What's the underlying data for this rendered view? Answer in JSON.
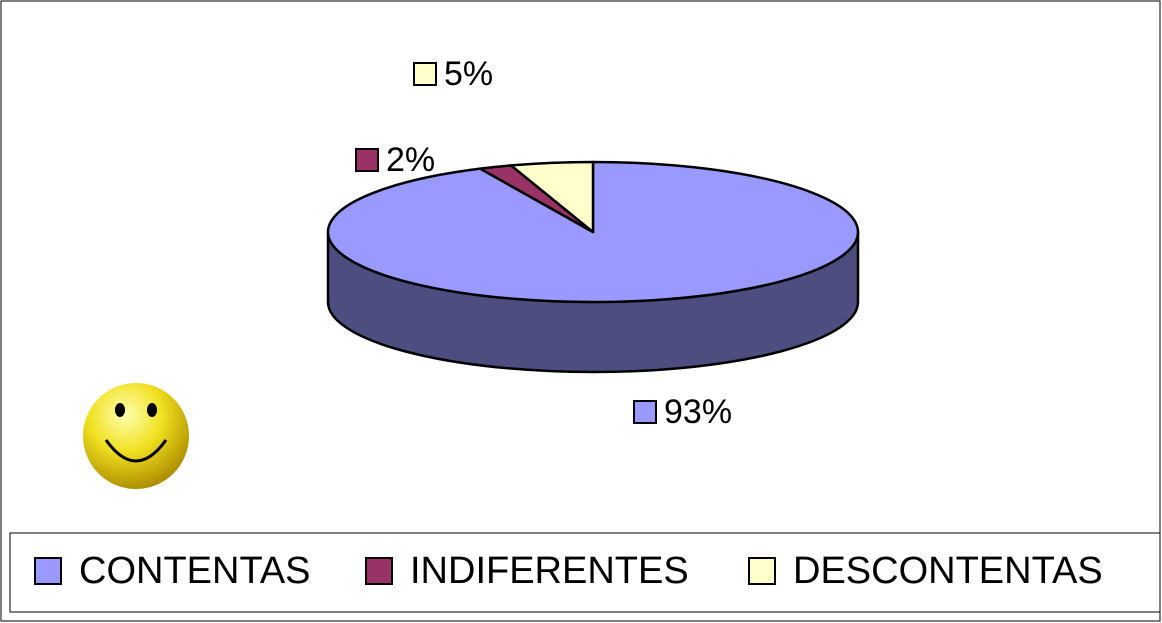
{
  "chart_data": {
    "type": "pie3d",
    "categories": [
      "CONTENTAS",
      "INDIFERENTES",
      "DESCONTENTAS"
    ],
    "values": [
      93,
      2,
      5
    ],
    "value_labels": [
      "93%",
      "2%",
      "5%"
    ],
    "colors": [
      "#9999ff",
      "#993366",
      "#ffffcc"
    ],
    "legend": "bottom"
  }
}
